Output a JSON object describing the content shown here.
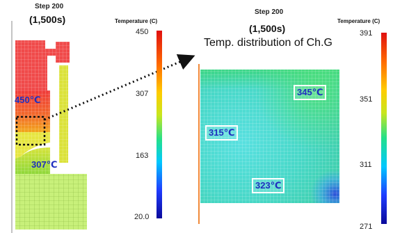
{
  "left_panel": {
    "step_label": "Step 200",
    "time_label": "(1,500s)",
    "colorbar": {
      "title": "Temperature (C)",
      "ticks": [
        "450",
        "307",
        "163",
        "20.0"
      ]
    },
    "annotations": [
      "450℃",
      "307℃"
    ]
  },
  "right_panel": {
    "step_label": "Step 200",
    "time_label": "(1,500s)",
    "caption": "Temp. distribution of Ch.G",
    "colorbar": {
      "title": "Temperature (C)",
      "ticks": [
        "391",
        "351",
        "311",
        "271"
      ]
    },
    "annotations": [
      "345℃",
      "315℃",
      "323℃"
    ]
  },
  "colormap": [
    "#0a0a9a",
    "#1f3cff",
    "#00c8ff",
    "#23e08a",
    "#c8e61e",
    "#ffcc00",
    "#ff6a00",
    "#e01010"
  ]
}
